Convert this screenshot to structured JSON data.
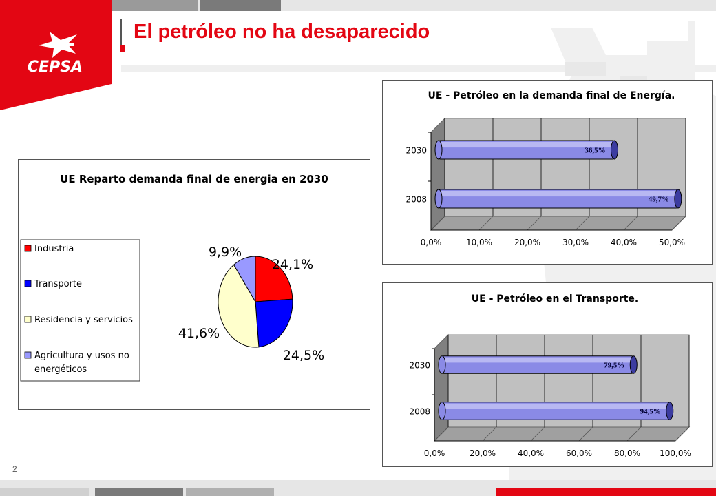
{
  "slide": {
    "title": "El petróleo no ha desaparecido",
    "page_number": "2",
    "logo_text": "CEPSA",
    "colors": {
      "brand_red": "#e30613",
      "bar_fill": "#8a8ae6",
      "wall_gray": "#c0c0c0"
    }
  },
  "chart_data": [
    {
      "type": "pie",
      "title": "UE Reparto demanda final de energia en 2030",
      "labels": [
        "Industria",
        "Transporte",
        "Residencia y servicios",
        "Agricultura y usos no energéticos"
      ],
      "values": [
        24.1,
        24.5,
        41.6,
        9.9
      ],
      "value_labels": [
        "24,1%",
        "24,5%",
        "41,6%",
        "9,9%"
      ],
      "colors": [
        "#ff0000",
        "#0000ff",
        "#ffffcc",
        "#9999ff"
      ],
      "legend": "left"
    },
    {
      "type": "bar",
      "orientation": "horizontal",
      "title": "UE - Petróleo en la demanda final de Energía.",
      "categories": [
        "2030",
        "2008"
      ],
      "values": [
        36.5,
        49.7
      ],
      "value_labels": [
        "36,5%",
        "49,7%"
      ],
      "xlim": [
        0,
        50
      ],
      "tick_labels": [
        "0,0%",
        "10,0%",
        "20,0%",
        "30,0%",
        "40,0%",
        "50,0%"
      ],
      "grid": true
    },
    {
      "type": "bar",
      "orientation": "horizontal",
      "title": "UE - Petróleo en el Transporte.",
      "categories": [
        "2030",
        "2008"
      ],
      "values": [
        79.5,
        94.5
      ],
      "value_labels": [
        "79,5%",
        "94,5%"
      ],
      "xlim": [
        0,
        100
      ],
      "tick_labels": [
        "0,0%",
        "20,0%",
        "40,0%",
        "60,0%",
        "80,0%",
        "100,0%"
      ],
      "grid": true
    }
  ]
}
